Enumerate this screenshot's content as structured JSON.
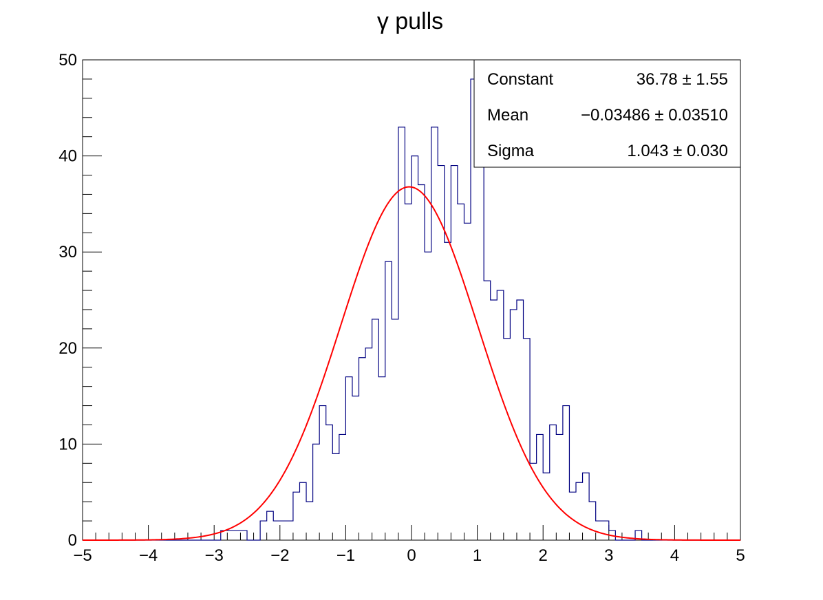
{
  "chart_data": {
    "type": "histogram",
    "title": "γ pulls",
    "xlim": [
      -5,
      5
    ],
    "ylim": [
      0,
      50
    ],
    "x_ticks": [
      -5,
      -4,
      -3,
      -2,
      -1,
      0,
      1,
      2,
      3,
      4,
      5
    ],
    "x_tick_labels": [
      "−5",
      "−4",
      "−3",
      "−2",
      "−1",
      "0",
      "1",
      "2",
      "3",
      "4",
      "5"
    ],
    "y_ticks": [
      0,
      10,
      20,
      30,
      40,
      50
    ],
    "y_tick_labels": [
      "0",
      "10",
      "20",
      "30",
      "40",
      "50"
    ],
    "grid": false,
    "bin_edges_start": -5,
    "bin_width": 0.1,
    "counts": [
      0,
      0,
      0,
      0,
      0,
      0,
      0,
      0,
      0,
      0,
      0,
      0,
      0,
      0,
      0,
      0,
      0,
      0,
      0,
      0,
      0,
      1,
      1,
      1,
      1,
      0,
      0,
      2,
      3,
      2,
      2,
      2,
      5,
      6,
      4,
      10,
      14,
      12,
      9,
      11,
      17,
      15,
      19,
      20,
      23,
      17,
      29,
      23,
      43,
      35,
      40,
      37,
      30,
      43,
      39,
      31,
      39,
      35,
      33,
      48,
      41,
      27,
      25,
      26,
      21,
      24,
      25,
      21,
      8,
      11,
      7,
      12,
      11,
      14,
      5,
      6,
      7,
      4,
      2,
      2,
      1,
      0,
      0,
      0,
      1,
      0,
      0,
      0,
      0,
      0,
      0,
      0,
      0,
      0,
      0,
      0,
      0,
      0,
      0,
      0
    ],
    "hist_color": "#000080",
    "fit": {
      "type": "gaussian",
      "color": "#ff0000",
      "constant": 36.78,
      "mean": -0.03486,
      "sigma": 1.043
    },
    "stats_box": {
      "placement": "top-right",
      "rows": [
        {
          "name": "Constant",
          "value": "36.78 ± 1.55"
        },
        {
          "name": "Mean",
          "value": "−0.03486 ± 0.03510"
        },
        {
          "name": "Sigma",
          "value": "1.043 ± 0.030"
        }
      ]
    }
  }
}
